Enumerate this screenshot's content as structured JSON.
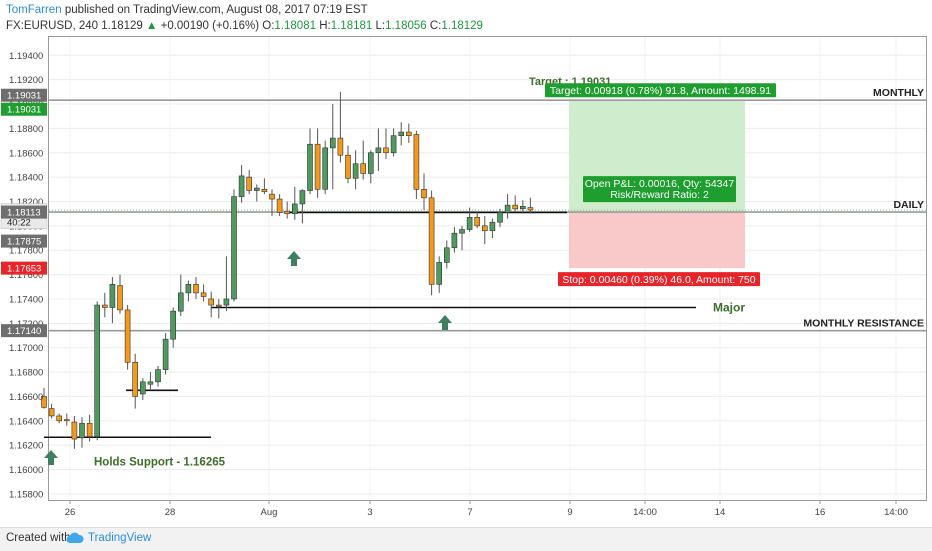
{
  "header": {
    "author": "TomFarren",
    "published": "published on TradingView.com, August 08, 2017 07:19 EST",
    "symbol": "FX:EURUSD, 240",
    "price": "1.18129",
    "change": "+0.00190 (+0.16%)",
    "o_label": "O:",
    "o_value": "1.18081",
    "h_label": "H:",
    "h_value": "1.18181",
    "l_label": "L:",
    "l_value": "1.18056",
    "c_label": "C:",
    "c_value": "1.18129"
  },
  "footer": {
    "created_with": "Created with",
    "brand": "TradingView"
  },
  "colors": {
    "bull": "#4f9a5e",
    "bear": "#f39a1c",
    "target_fill": "#cfeccd",
    "stop_fill": "#f9c9c9",
    "target_label": "#1e9e2e",
    "stop_label": "#e8242b",
    "arrow": "#3d7f5e",
    "annotation_text": "#3d6e2a"
  },
  "chart_data": {
    "type": "candlestick",
    "ylim": [
      1.1575,
      1.1955
    ],
    "y_ticks": [
      "1.15800",
      "1.16000",
      "1.16200",
      "1.16400",
      "1.16600",
      "1.16800",
      "1.17000",
      "1.17200",
      "1.17400",
      "1.17600",
      "1.17800",
      "1.18000",
      "1.18200",
      "1.18400",
      "1.18600",
      "1.18800",
      "1.19000",
      "1.19200",
      "1.19400"
    ],
    "x_ticks": [
      "26",
      "28",
      "Aug",
      "3",
      "7",
      "9",
      "14:00",
      "14",
      "16",
      "14:00"
    ],
    "candles": [
      {
        "o": 1.166,
        "h": 1.1667,
        "l": 1.165,
        "c": 1.1651
      },
      {
        "o": 1.165,
        "h": 1.1654,
        "l": 1.1642,
        "c": 1.1644
      },
      {
        "o": 1.1644,
        "h": 1.1646,
        "l": 1.1638,
        "c": 1.164
      },
      {
        "o": 1.1641,
        "h": 1.1646,
        "l": 1.1636,
        "c": 1.164
      },
      {
        "o": 1.1639,
        "h": 1.1644,
        "l": 1.1617,
        "c": 1.1625
      },
      {
        "o": 1.1626,
        "h": 1.1643,
        "l": 1.1618,
        "c": 1.1638
      },
      {
        "o": 1.1638,
        "h": 1.1645,
        "l": 1.1623,
        "c": 1.1627
      },
      {
        "o": 1.1627,
        "h": 1.1738,
        "l": 1.1624,
        "c": 1.1735
      },
      {
        "o": 1.1735,
        "h": 1.1745,
        "l": 1.1725,
        "c": 1.1733
      },
      {
        "o": 1.1733,
        "h": 1.1758,
        "l": 1.172,
        "c": 1.1752
      },
      {
        "o": 1.1751,
        "h": 1.176,
        "l": 1.1728,
        "c": 1.1731
      },
      {
        "o": 1.1731,
        "h": 1.1735,
        "l": 1.1682,
        "c": 1.1688
      },
      {
        "o": 1.1688,
        "h": 1.1695,
        "l": 1.165,
        "c": 1.166
      },
      {
        "o": 1.1662,
        "h": 1.1675,
        "l": 1.1657,
        "c": 1.1672
      },
      {
        "o": 1.167,
        "h": 1.168,
        "l": 1.1665,
        "c": 1.1672
      },
      {
        "o": 1.1672,
        "h": 1.1685,
        "l": 1.1668,
        "c": 1.1682
      },
      {
        "o": 1.1682,
        "h": 1.1712,
        "l": 1.1678,
        "c": 1.1707
      },
      {
        "o": 1.1707,
        "h": 1.1733,
        "l": 1.17,
        "c": 1.173
      },
      {
        "o": 1.173,
        "h": 1.176,
        "l": 1.1726,
        "c": 1.1745
      },
      {
        "o": 1.1745,
        "h": 1.1755,
        "l": 1.1738,
        "c": 1.1752
      },
      {
        "o": 1.1752,
        "h": 1.1758,
        "l": 1.174,
        "c": 1.1745
      },
      {
        "o": 1.1745,
        "h": 1.1752,
        "l": 1.1738,
        "c": 1.1742
      },
      {
        "o": 1.174,
        "h": 1.1746,
        "l": 1.1725,
        "c": 1.1735
      },
      {
        "o": 1.1735,
        "h": 1.174,
        "l": 1.1724,
        "c": 1.1734
      },
      {
        "o": 1.1735,
        "h": 1.1775,
        "l": 1.173,
        "c": 1.174
      },
      {
        "o": 1.174,
        "h": 1.183,
        "l": 1.1738,
        "c": 1.1824
      },
      {
        "o": 1.1824,
        "h": 1.185,
        "l": 1.1819,
        "c": 1.1841
      },
      {
        "o": 1.184,
        "h": 1.1846,
        "l": 1.1826,
        "c": 1.1829
      },
      {
        "o": 1.1829,
        "h": 1.1834,
        "l": 1.182,
        "c": 1.1831
      },
      {
        "o": 1.183,
        "h": 1.1839,
        "l": 1.1826,
        "c": 1.1828
      },
      {
        "o": 1.1826,
        "h": 1.183,
        "l": 1.1808,
        "c": 1.1822
      },
      {
        "o": 1.1822,
        "h": 1.1826,
        "l": 1.1808,
        "c": 1.1811
      },
      {
        "o": 1.1812,
        "h": 1.182,
        "l": 1.1806,
        "c": 1.181
      },
      {
        "o": 1.181,
        "h": 1.1832,
        "l": 1.1805,
        "c": 1.1818
      },
      {
        "o": 1.1818,
        "h": 1.183,
        "l": 1.1802,
        "c": 1.1829
      },
      {
        "o": 1.1829,
        "h": 1.188,
        "l": 1.1826,
        "c": 1.1867
      },
      {
        "o": 1.1867,
        "h": 1.188,
        "l": 1.1823,
        "c": 1.183
      },
      {
        "o": 1.183,
        "h": 1.187,
        "l": 1.1826,
        "c": 1.1864
      },
      {
        "o": 1.1864,
        "h": 1.19,
        "l": 1.183,
        "c": 1.1872
      },
      {
        "o": 1.1872,
        "h": 1.191,
        "l": 1.1852,
        "c": 1.1858
      },
      {
        "o": 1.1858,
        "h": 1.1866,
        "l": 1.1835,
        "c": 1.1839
      },
      {
        "o": 1.1839,
        "h": 1.1862,
        "l": 1.183,
        "c": 1.1851
      },
      {
        "o": 1.1851,
        "h": 1.187,
        "l": 1.1838,
        "c": 1.1843
      },
      {
        "o": 1.1843,
        "h": 1.1862,
        "l": 1.1835,
        "c": 1.186
      },
      {
        "o": 1.186,
        "h": 1.188,
        "l": 1.1845,
        "c": 1.1864
      },
      {
        "o": 1.1864,
        "h": 1.188,
        "l": 1.1855,
        "c": 1.186
      },
      {
        "o": 1.186,
        "h": 1.188,
        "l": 1.1857,
        "c": 1.1874
      },
      {
        "o": 1.1874,
        "h": 1.1885,
        "l": 1.1866,
        "c": 1.1877
      },
      {
        "o": 1.1877,
        "h": 1.1884,
        "l": 1.1868,
        "c": 1.1874
      },
      {
        "o": 1.1875,
        "h": 1.1878,
        "l": 1.1822,
        "c": 1.183
      },
      {
        "o": 1.183,
        "h": 1.1843,
        "l": 1.1813,
        "c": 1.1823
      },
      {
        "o": 1.1823,
        "h": 1.1829,
        "l": 1.1743,
        "c": 1.1752
      },
      {
        "o": 1.1752,
        "h": 1.1775,
        "l": 1.1745,
        "c": 1.177
      },
      {
        "o": 1.177,
        "h": 1.1788,
        "l": 1.1765,
        "c": 1.1782
      },
      {
        "o": 1.1782,
        "h": 1.1799,
        "l": 1.1778,
        "c": 1.1794
      },
      {
        "o": 1.1794,
        "h": 1.18,
        "l": 1.178,
        "c": 1.1797
      },
      {
        "o": 1.1797,
        "h": 1.1815,
        "l": 1.1795,
        "c": 1.1807
      },
      {
        "o": 1.1807,
        "h": 1.1812,
        "l": 1.1798,
        "c": 1.18
      },
      {
        "o": 1.18,
        "h": 1.1808,
        "l": 1.1785,
        "c": 1.1796
      },
      {
        "o": 1.1796,
        "h": 1.1806,
        "l": 1.179,
        "c": 1.1803
      },
      {
        "o": 1.1803,
        "h": 1.1814,
        "l": 1.1799,
        "c": 1.1811
      },
      {
        "o": 1.1811,
        "h": 1.1826,
        "l": 1.1806,
        "c": 1.1817
      },
      {
        "o": 1.1817,
        "h": 1.1825,
        "l": 1.1812,
        "c": 1.1814
      },
      {
        "o": 1.1814,
        "h": 1.1821,
        "l": 1.181,
        "c": 1.1816
      },
      {
        "o": 1.1815,
        "h": 1.1823,
        "l": 1.181,
        "c": 1.1813
      }
    ],
    "price_labels": [
      {
        "value": "1.19031",
        "kind": "grey"
      },
      {
        "value": "1.19031",
        "kind": "green"
      },
      {
        "value": "1.18129",
        "kind": "current"
      },
      {
        "value": "40:22",
        "kind": "timer"
      },
      {
        "value": "1.18113",
        "kind": "grey"
      },
      {
        "value": "1.17875",
        "kind": "grey"
      },
      {
        "value": "1.17653",
        "kind": "red"
      },
      {
        "value": "1.17140",
        "kind": "grey"
      }
    ],
    "levels": [
      {
        "price": 1.19031,
        "label": "MONTHLY"
      },
      {
        "price": 1.18113,
        "label": "DAILY"
      },
      {
        "price": 1.1714,
        "label": "MONTHLY RESISTANCE"
      }
    ],
    "annotations": {
      "major": "Major",
      "support": "Holds Support - 1.16265",
      "target_partial": "Target : 1.19031"
    },
    "position": {
      "entry": 1.18113,
      "target": 1.19031,
      "stop": 1.17653,
      "target_text": "Target: 0.00918 (0.78%) 91.8, Amount: 1498.91",
      "stop_text": "Stop: 0.00460 (0.39%) 46.0, Amount: 750",
      "pnl_text": "Open P&L: 0.00016, Qty: 54347",
      "rr_text": "Risk/Reward Ratio: 2"
    }
  }
}
